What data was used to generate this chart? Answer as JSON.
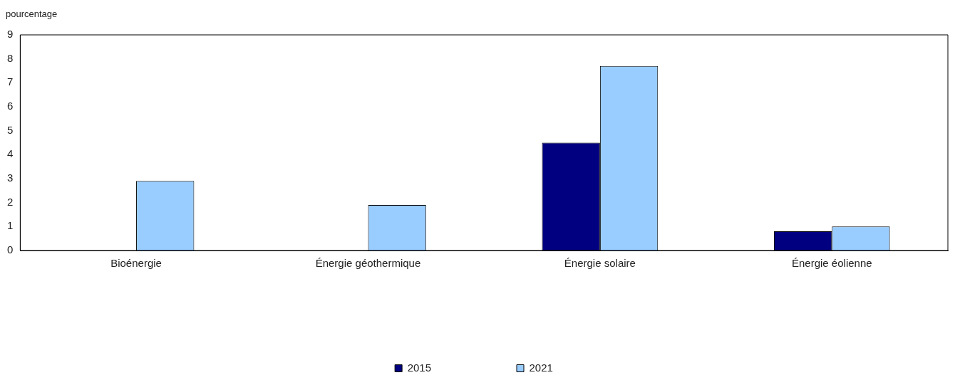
{
  "chart_data": {
    "type": "bar",
    "ylabel": "pourcentage",
    "categories": [
      "Bioénergie",
      "Énergie géothermique",
      "Énergie solaire",
      "Énergie éolienne"
    ],
    "series": [
      {
        "name": "2015",
        "color": "#000080",
        "values": [
          null,
          null,
          4.5,
          0.8
        ]
      },
      {
        "name": "2021",
        "color": "#99ccff",
        "values": [
          2.9,
          1.9,
          7.7,
          1.0
        ]
      }
    ],
    "ylim": [
      0,
      9
    ],
    "yticks": [
      0,
      1,
      2,
      3,
      4,
      5,
      6,
      7,
      8,
      9
    ],
    "grid": false,
    "legend": "bottom"
  }
}
